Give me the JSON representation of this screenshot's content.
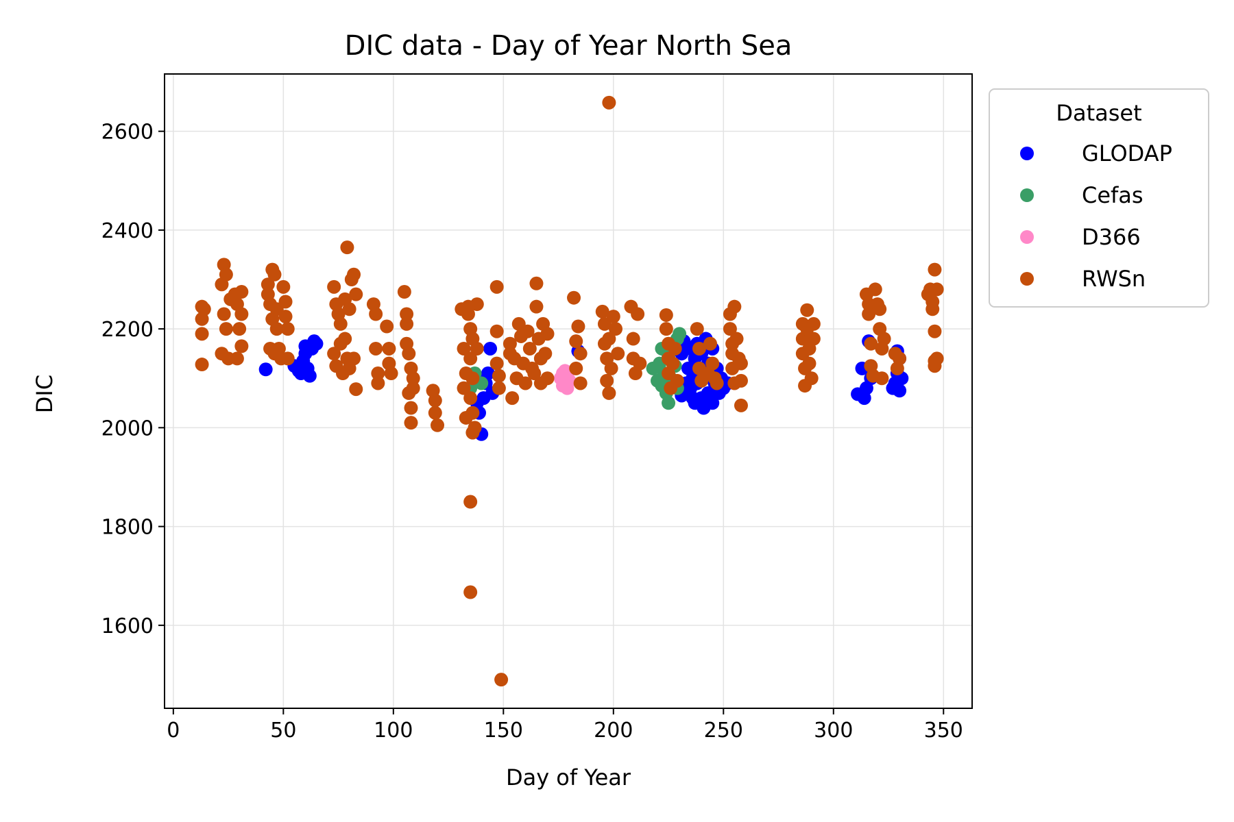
{
  "chart_data": {
    "type": "scatter",
    "title": "DIC data - Day of Year North Sea",
    "xlabel": "Day of Year",
    "ylabel": "DIC",
    "xlim": [
      -4,
      363
    ],
    "ylim": [
      1432,
      2716
    ],
    "xticks": [
      0,
      50,
      100,
      150,
      200,
      250,
      300,
      350
    ],
    "yticks": [
      1600,
      1800,
      2000,
      2200,
      2400,
      2600
    ],
    "grid": true,
    "legend": {
      "title": "Dataset",
      "position": "outside-upper-right"
    },
    "series": [
      {
        "name": "GLODAP",
        "color": "#0000ff",
        "points": [
          [
            42,
            2118
          ],
          [
            55,
            2125
          ],
          [
            57,
            2115
          ],
          [
            58,
            2110
          ],
          [
            59,
            2135
          ],
          [
            60,
            2150
          ],
          [
            60,
            2165
          ],
          [
            61,
            2120
          ],
          [
            62,
            2105
          ],
          [
            63,
            2160
          ],
          [
            64,
            2175
          ],
          [
            65,
            2170
          ],
          [
            138,
            2100
          ],
          [
            138,
            2050
          ],
          [
            139,
            2030
          ],
          [
            140,
            1987
          ],
          [
            141,
            2060
          ],
          [
            142,
            2090
          ],
          [
            143,
            2110
          ],
          [
            144,
            2160
          ],
          [
            145,
            2070
          ],
          [
            184,
            2155
          ],
          [
            231,
            2150
          ],
          [
            231,
            2065
          ],
          [
            232,
            2175
          ],
          [
            233,
            2090
          ],
          [
            234,
            2120
          ],
          [
            235,
            2080
          ],
          [
            235,
            2160
          ],
          [
            236,
            2100
          ],
          [
            236,
            2060
          ],
          [
            237,
            2140
          ],
          [
            237,
            2050
          ],
          [
            238,
            2170
          ],
          [
            238,
            2090
          ],
          [
            239,
            2120
          ],
          [
            240,
            2060
          ],
          [
            240,
            2150
          ],
          [
            241,
            2040
          ],
          [
            241,
            2100
          ],
          [
            242,
            2180
          ],
          [
            243,
            2070
          ],
          [
            243,
            2130
          ],
          [
            244,
            2110
          ],
          [
            245,
            2050
          ],
          [
            245,
            2160
          ],
          [
            246,
            2090
          ],
          [
            247,
            2120
          ],
          [
            248,
            2070
          ],
          [
            249,
            2100
          ],
          [
            250,
            2080
          ],
          [
            252,
            2090
          ],
          [
            311,
            2068
          ],
          [
            313,
            2120
          ],
          [
            314,
            2060
          ],
          [
            315,
            2080
          ],
          [
            316,
            2175
          ],
          [
            317,
            2100
          ],
          [
            327,
            2080
          ],
          [
            328,
            2090
          ],
          [
            329,
            2155
          ],
          [
            329,
            2110
          ],
          [
            330,
            2140
          ],
          [
            330,
            2075
          ],
          [
            331,
            2100
          ]
        ]
      },
      {
        "name": "Cefas",
        "color": "#3a9e66",
        "points": [
          [
            135,
            2080
          ],
          [
            137,
            2110
          ],
          [
            140,
            2090
          ],
          [
            218,
            2120
          ],
          [
            220,
            2095
          ],
          [
            221,
            2130
          ],
          [
            222,
            2085
          ],
          [
            222,
            2160
          ],
          [
            223,
            2110
          ],
          [
            224,
            2070
          ],
          [
            225,
            2050
          ],
          [
            225,
            2145
          ],
          [
            226,
            2100
          ],
          [
            227,
            2170
          ],
          [
            228,
            2125
          ],
          [
            229,
            2080
          ],
          [
            229,
            2180
          ],
          [
            230,
            2190
          ]
        ]
      },
      {
        "name": "D366",
        "color": "#ff88c8",
        "points": [
          [
            176,
            2100
          ],
          [
            177,
            2110
          ],
          [
            178,
            2090
          ],
          [
            178,
            2115
          ],
          [
            179,
            2080
          ],
          [
            180,
            2095
          ],
          [
            177,
            2085
          ],
          [
            179,
            2105
          ]
        ]
      },
      {
        "name": "RWSn",
        "color": "#c44e0a",
        "points": [
          [
            13,
            2245
          ],
          [
            13,
            2220
          ],
          [
            13,
            2190
          ],
          [
            13,
            2128
          ],
          [
            14,
            2240
          ],
          [
            22,
            2290
          ],
          [
            22,
            2150
          ],
          [
            23,
            2330
          ],
          [
            23,
            2230
          ],
          [
            24,
            2310
          ],
          [
            24,
            2200
          ],
          [
            25,
            2140
          ],
          [
            26,
            2260
          ],
          [
            28,
            2270
          ],
          [
            29,
            2250
          ],
          [
            29,
            2140
          ],
          [
            30,
            2200
          ],
          [
            31,
            2275
          ],
          [
            31,
            2165
          ],
          [
            31,
            2230
          ],
          [
            43,
            2290
          ],
          [
            43,
            2270
          ],
          [
            44,
            2250
          ],
          [
            44,
            2160
          ],
          [
            45,
            2320
          ],
          [
            45,
            2220
          ],
          [
            46,
            2310
          ],
          [
            46,
            2150
          ],
          [
            47,
            2240
          ],
          [
            47,
            2200
          ],
          [
            48,
            2160
          ],
          [
            49,
            2140
          ],
          [
            50,
            2285
          ],
          [
            51,
            2255
          ],
          [
            51,
            2225
          ],
          [
            52,
            2140
          ],
          [
            52,
            2200
          ],
          [
            73,
            2285
          ],
          [
            73,
            2150
          ],
          [
            74,
            2250
          ],
          [
            74,
            2125
          ],
          [
            75,
            2230
          ],
          [
            76,
            2170
          ],
          [
            76,
            2210
          ],
          [
            77,
            2110
          ],
          [
            78,
            2260
          ],
          [
            78,
            2180
          ],
          [
            79,
            2365
          ],
          [
            79,
            2140
          ],
          [
            80,
            2240
          ],
          [
            80,
            2120
          ],
          [
            81,
            2300
          ],
          [
            82,
            2310
          ],
          [
            82,
            2140
          ],
          [
            83,
            2270
          ],
          [
            83,
            2078
          ],
          [
            91,
            2250
          ],
          [
            92,
            2230
          ],
          [
            92,
            2160
          ],
          [
            93,
            2110
          ],
          [
            93,
            2090
          ],
          [
            97,
            2205
          ],
          [
            98,
            2160
          ],
          [
            98,
            2130
          ],
          [
            99,
            2110
          ],
          [
            105,
            2275
          ],
          [
            106,
            2230
          ],
          [
            106,
            2210
          ],
          [
            106,
            2170
          ],
          [
            107,
            2150
          ],
          [
            107,
            2070
          ],
          [
            108,
            2120
          ],
          [
            108,
            2040
          ],
          [
            108,
            2010
          ],
          [
            109,
            2080
          ],
          [
            109,
            2100
          ],
          [
            118,
            2075
          ],
          [
            119,
            2055
          ],
          [
            119,
            2030
          ],
          [
            120,
            2005
          ],
          [
            131,
            2240
          ],
          [
            132,
            2160
          ],
          [
            132,
            2080
          ],
          [
            133,
            2110
          ],
          [
            133,
            2020
          ],
          [
            134,
            2245
          ],
          [
            134,
            2230
          ],
          [
            135,
            2200
          ],
          [
            135,
            2140
          ],
          [
            135,
            2060
          ],
          [
            135,
            1850
          ],
          [
            135,
            1667
          ],
          [
            136,
            2180
          ],
          [
            136,
            2100
          ],
          [
            136,
            2030
          ],
          [
            136,
            1990
          ],
          [
            137,
            2000
          ],
          [
            138,
            2250
          ],
          [
            138,
            2160
          ],
          [
            147,
            2285
          ],
          [
            147,
            2195
          ],
          [
            147,
            2130
          ],
          [
            148,
            2105
          ],
          [
            148,
            2080
          ],
          [
            149,
            1490
          ],
          [
            153,
            2170
          ],
          [
            153,
            2150
          ],
          [
            154,
            2060
          ],
          [
            155,
            2140
          ],
          [
            156,
            2100
          ],
          [
            157,
            2210
          ],
          [
            158,
            2185
          ],
          [
            159,
            2130
          ],
          [
            160,
            2090
          ],
          [
            161,
            2195
          ],
          [
            162,
            2160
          ],
          [
            163,
            2120
          ],
          [
            164,
            2110
          ],
          [
            165,
            2292
          ],
          [
            165,
            2245
          ],
          [
            166,
            2180
          ],
          [
            167,
            2140
          ],
          [
            167,
            2090
          ],
          [
            168,
            2210
          ],
          [
            169,
            2150
          ],
          [
            170,
            2190
          ],
          [
            170,
            2100
          ],
          [
            182,
            2263
          ],
          [
            183,
            2175
          ],
          [
            183,
            2120
          ],
          [
            184,
            2205
          ],
          [
            185,
            2150
          ],
          [
            185,
            2090
          ],
          [
            195,
            2235
          ],
          [
            196,
            2210
          ],
          [
            196,
            2170
          ],
          [
            197,
            2140
          ],
          [
            197,
            2095
          ],
          [
            198,
            2658
          ],
          [
            198,
            2180
          ],
          [
            198,
            2070
          ],
          [
            199,
            2120
          ],
          [
            200,
            2225
          ],
          [
            201,
            2200
          ],
          [
            202,
            2150
          ],
          [
            208,
            2245
          ],
          [
            209,
            2180
          ],
          [
            209,
            2140
          ],
          [
            210,
            2110
          ],
          [
            211,
            2230
          ],
          [
            212,
            2130
          ],
          [
            224,
            2228
          ],
          [
            224,
            2200
          ],
          [
            225,
            2170
          ],
          [
            225,
            2140
          ],
          [
            225,
            2110
          ],
          [
            226,
            2080
          ],
          [
            227,
            2130
          ],
          [
            228,
            2160
          ],
          [
            229,
            2095
          ],
          [
            238,
            2200
          ],
          [
            239,
            2160
          ],
          [
            239,
            2120
          ],
          [
            240,
            2095
          ],
          [
            243,
            2110
          ],
          [
            244,
            2170
          ],
          [
            245,
            2130
          ],
          [
            246,
            2100
          ],
          [
            247,
            2090
          ],
          [
            253,
            2230
          ],
          [
            253,
            2200
          ],
          [
            254,
            2170
          ],
          [
            254,
            2150
          ],
          [
            254,
            2120
          ],
          [
            255,
            2245
          ],
          [
            255,
            2090
          ],
          [
            256,
            2180
          ],
          [
            257,
            2140
          ],
          [
            258,
            2045
          ],
          [
            258,
            2130
          ],
          [
            258,
            2095
          ],
          [
            286,
            2210
          ],
          [
            286,
            2180
          ],
          [
            286,
            2150
          ],
          [
            287,
            2120
          ],
          [
            287,
            2085
          ],
          [
            288,
            2238
          ],
          [
            288,
            2200
          ],
          [
            289,
            2160
          ],
          [
            289,
            2130
          ],
          [
            290,
            2100
          ],
          [
            291,
            2210
          ],
          [
            291,
            2180
          ],
          [
            315,
            2270
          ],
          [
            316,
            2250
          ],
          [
            316,
            2230
          ],
          [
            317,
            2170
          ],
          [
            317,
            2125
          ],
          [
            318,
            2105
          ],
          [
            319,
            2280
          ],
          [
            320,
            2250
          ],
          [
            321,
            2240
          ],
          [
            321,
            2200
          ],
          [
            322,
            2160
          ],
          [
            322,
            2100
          ],
          [
            323,
            2180
          ],
          [
            328,
            2150
          ],
          [
            329,
            2120
          ],
          [
            330,
            2140
          ],
          [
            343,
            2270
          ],
          [
            344,
            2280
          ],
          [
            345,
            2255
          ],
          [
            345,
            2240
          ],
          [
            346,
            2320
          ],
          [
            346,
            2195
          ],
          [
            346,
            2135
          ],
          [
            346,
            2125
          ],
          [
            347,
            2280
          ],
          [
            347,
            2140
          ]
        ]
      }
    ]
  }
}
